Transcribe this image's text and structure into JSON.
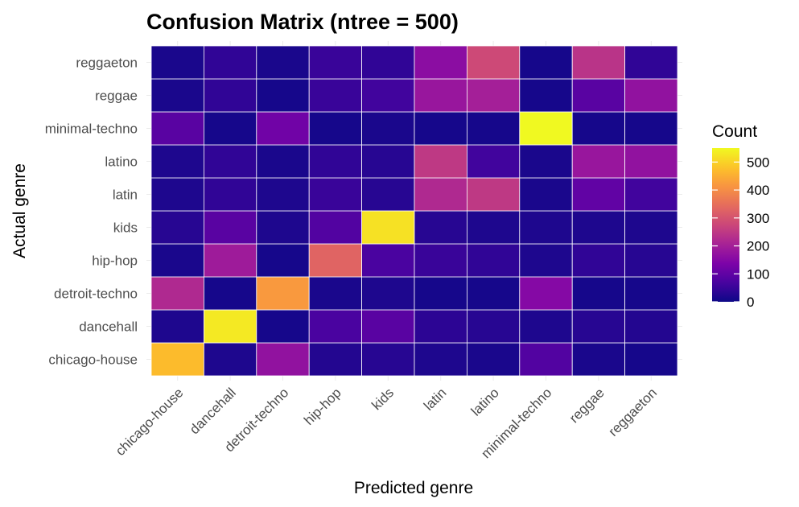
{
  "chart_data": {
    "type": "heatmap",
    "title": "Confusion Matrix (ntree = 500)",
    "xlabel": "Predicted genre",
    "ylabel": "Actual genre",
    "x_categories": [
      "chicago-house",
      "dancehall",
      "detroit-techno",
      "hip-hop",
      "kids",
      "latin",
      "latino",
      "minimal-techno",
      "reggae",
      "reggaeton"
    ],
    "y_categories": [
      "chicago-house",
      "dancehall",
      "detroit-techno",
      "hip-hop",
      "kids",
      "latin",
      "latino",
      "minimal-techno",
      "reggae",
      "reggaeton"
    ],
    "values": [
      [
        470,
        20,
        170,
        25,
        30,
        20,
        15,
        80,
        15,
        10
      ],
      [
        20,
        530,
        10,
        70,
        90,
        35,
        30,
        20,
        30,
        25
      ],
      [
        220,
        10,
        420,
        15,
        20,
        10,
        10,
        150,
        10,
        10
      ],
      [
        15,
        190,
        10,
        330,
        70,
        50,
        40,
        20,
        40,
        30
      ],
      [
        30,
        90,
        20,
        80,
        520,
        30,
        20,
        20,
        20,
        20
      ],
      [
        20,
        40,
        20,
        50,
        30,
        220,
        250,
        15,
        100,
        60
      ],
      [
        20,
        40,
        15,
        40,
        30,
        250,
        60,
        15,
        180,
        170
      ],
      [
        90,
        10,
        120,
        10,
        15,
        10,
        10,
        550,
        10,
        10
      ],
      [
        15,
        40,
        10,
        50,
        60,
        180,
        200,
        10,
        90,
        170
      ],
      [
        15,
        40,
        15,
        50,
        40,
        160,
        280,
        10,
        240,
        40
      ]
    ],
    "color_scale": "plasma",
    "color_limits": [
      0,
      550
    ],
    "legend": {
      "title": "Count",
      "ticks": [
        0,
        100,
        200,
        300,
        400,
        500
      ],
      "placement": "right"
    }
  }
}
